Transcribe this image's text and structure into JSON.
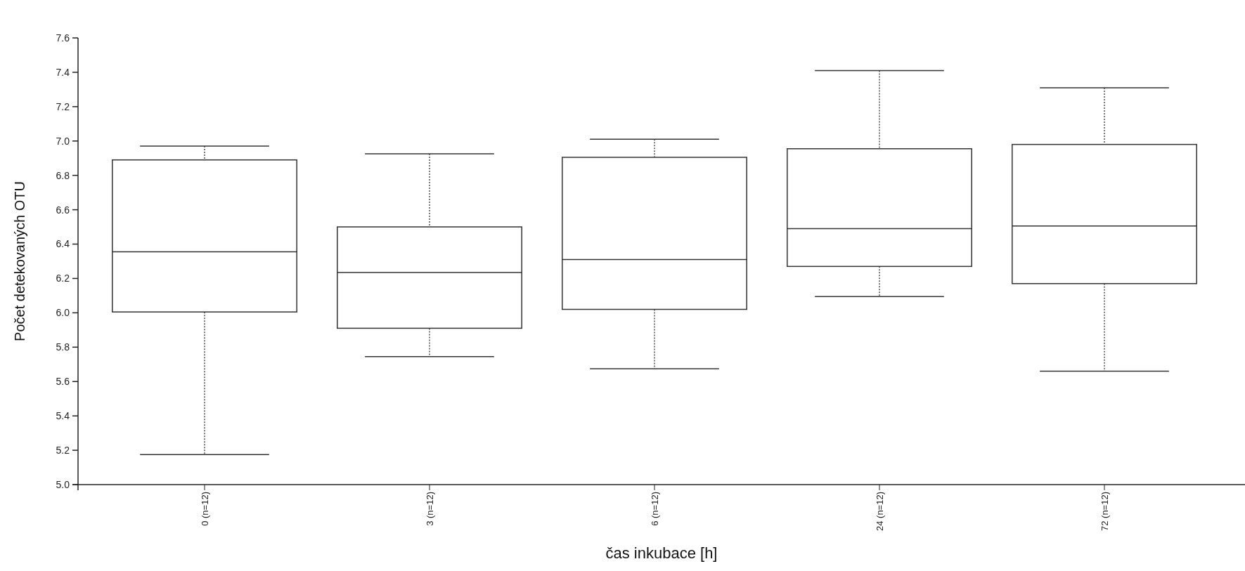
{
  "chart_data": {
    "type": "box",
    "xlabel": "čas inkubace [h]",
    "ylabel": "Počet detekovaných OTU",
    "categories": [
      "0 (n=12)",
      "3 (n=12)",
      "6 (n=12)",
      "24 (n=12)",
      "72 (n=12)"
    ],
    "boxes": [
      {
        "low": 5.175,
        "q1": 6.005,
        "median": 6.355,
        "q3": 6.89,
        "high": 6.97
      },
      {
        "low": 5.745,
        "q1": 5.91,
        "median": 6.235,
        "q3": 6.5,
        "high": 6.925
      },
      {
        "low": 5.675,
        "q1": 6.02,
        "median": 6.31,
        "q3": 6.905,
        "high": 7.01
      },
      {
        "low": 6.095,
        "q1": 6.27,
        "median": 6.49,
        "q3": 6.955,
        "high": 7.41
      },
      {
        "low": 5.66,
        "q1": 6.17,
        "median": 6.505,
        "q3": 6.98,
        "high": 7.31
      }
    ],
    "color": "#333333",
    "ylim": [
      5.0,
      7.6
    ],
    "yticks": [
      {
        "value": 5,
        "label": "5.0"
      },
      5.2,
      5.4,
      5.6,
      5.8,
      {
        "value": 6,
        "label": "6.0"
      },
      6.2,
      6.4,
      6.6,
      6.8,
      {
        "value": 7,
        "label": "7.0"
      },
      7.2,
      7.4,
      7.6
    ],
    "grid": false
  }
}
